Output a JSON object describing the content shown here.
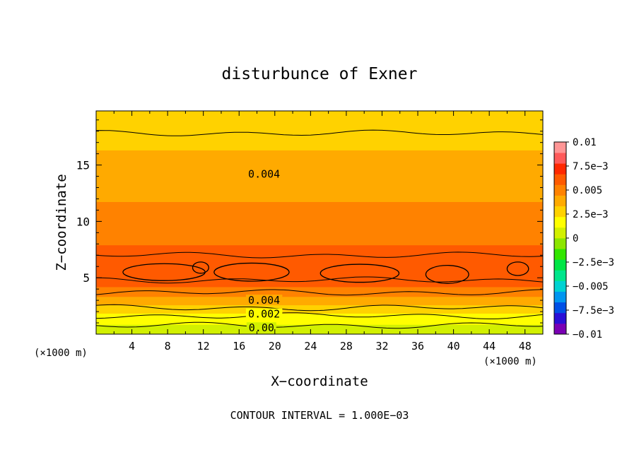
{
  "chart_data": {
    "type": "contour",
    "title": "disturbunce of Exner",
    "xlabel": "X−coordinate",
    "ylabel": "Z−coordinate",
    "x_unit": "(×1000 m)",
    "y_unit": "(×1000 m)",
    "footer": "CONTOUR INTERVAL = 1.000E−03",
    "xlim": [
      0,
      50
    ],
    "ylim": [
      0,
      19.8
    ],
    "x_ticks": [
      4,
      8,
      12,
      16,
      20,
      24,
      28,
      32,
      36,
      40,
      44,
      48
    ],
    "y_ticks": [
      5,
      10,
      15
    ],
    "colorbar": {
      "range": [
        -0.01,
        0.01
      ],
      "tick_values": [
        0.01,
        0.0075,
        0.005,
        0.0025,
        0,
        -0.0025,
        -0.005,
        -0.0075,
        -0.01
      ],
      "tick_labels": [
        "0.01",
        "7.5e−3",
        "0.005",
        "2.5e−3",
        "0",
        "−2.5e−3",
        "−0.005",
        "−7.5e−3",
        "−0.01"
      ],
      "colors": [
        "#7a00b4",
        "#2a0fd6",
        "#0050e6",
        "#0096f0",
        "#00d2d2",
        "#00e68c",
        "#00e646",
        "#32e600",
        "#8ce600",
        "#d2f000",
        "#ffff00",
        "#ffd200",
        "#ffaa00",
        "#ff8200",
        "#ff5a00",
        "#ff2800",
        "#ff5a5a",
        "#ff9696"
      ]
    },
    "contour_labels": [
      {
        "text": "0.004",
        "x": 18.8,
        "z": 14.2
      },
      {
        "text": "0.004",
        "x": 18.8,
        "z": 3.0
      },
      {
        "text": "0.002",
        "x": 18.8,
        "z": 1.78
      },
      {
        "text": "0.00",
        "x": 18.5,
        "z": 0.55
      }
    ],
    "field_profile": [
      {
        "z": 0.0,
        "v": 0.0005
      },
      {
        "z": 0.6,
        "v": 0.0008
      },
      {
        "z": 1.2,
        "v": 0.0015
      },
      {
        "z": 1.8,
        "v": 0.0022
      },
      {
        "z": 2.4,
        "v": 0.0031
      },
      {
        "z": 3.0,
        "v": 0.004
      },
      {
        "z": 3.6,
        "v": 0.0049
      },
      {
        "z": 4.4,
        "v": 0.0058
      },
      {
        "z": 5.4,
        "v": 0.0063
      },
      {
        "z": 6.5,
        "v": 0.0062
      },
      {
        "z": 7.5,
        "v": 0.0058
      },
      {
        "z": 9.0,
        "v": 0.005
      },
      {
        "z": 11.0,
        "v": 0.0046
      },
      {
        "z": 13.0,
        "v": 0.0042
      },
      {
        "z": 14.2,
        "v": 0.004
      },
      {
        "z": 16.0,
        "v": 0.0034
      },
      {
        "z": 17.5,
        "v": 0.0031
      },
      {
        "z": 18.8,
        "v": 0.0027
      },
      {
        "z": 19.8,
        "v": 0.0026
      }
    ],
    "contour_levels": [
      0.0,
      0.001,
      0.002,
      0.003,
      0.004,
      0.005,
      0.006
    ],
    "closed_contours_0_006": [
      {
        "xc": 7.6,
        "zc": 5.5,
        "rx": 4.6,
        "rz": 0.75
      },
      {
        "xc": 11.7,
        "zc": 5.9,
        "rx": 0.9,
        "rz": 0.5
      },
      {
        "xc": 17.4,
        "zc": 5.5,
        "rx": 4.2,
        "rz": 0.8
      },
      {
        "xc": 29.5,
        "zc": 5.4,
        "rx": 4.4,
        "rz": 0.8
      },
      {
        "xc": 39.3,
        "zc": 5.3,
        "rx": 2.4,
        "rz": 0.8
      },
      {
        "xc": 47.2,
        "zc": 5.8,
        "rx": 1.2,
        "rz": 0.6
      }
    ]
  }
}
